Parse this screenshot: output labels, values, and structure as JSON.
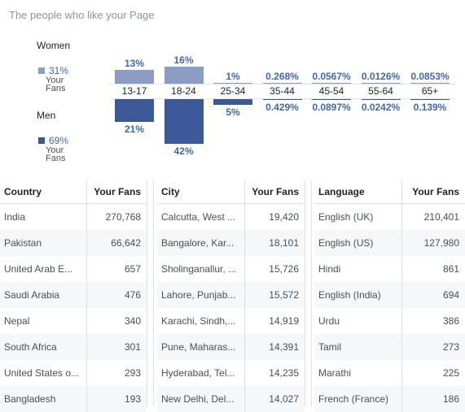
{
  "title": "The people who like your Page",
  "colors": {
    "women": "#8b9dc3",
    "men": "#3b5998",
    "label_blue": "#4267b2"
  },
  "legend": {
    "women": {
      "label": "Women",
      "pct": "31%",
      "sub": "Your Fans"
    },
    "men": {
      "label": "Men",
      "pct": "69%",
      "sub": "Your Fans"
    }
  },
  "chart_data": {
    "type": "bar",
    "categories": [
      "13-17",
      "18-24",
      "25-34",
      "35-44",
      "45-54",
      "55-64",
      "65+"
    ],
    "series": [
      {
        "name": "Women",
        "values": [
          13,
          16,
          1,
          0.268,
          0.0567,
          0.0126,
          0.0853
        ],
        "labels": [
          "13%",
          "16%",
          "1%",
          "0.268%",
          "0.0567%",
          "0.0126%",
          "0.0853%"
        ]
      },
      {
        "name": "Men",
        "values": [
          21,
          42,
          5,
          0.429,
          0.0897,
          0.0242,
          0.139
        ],
        "labels": [
          "21%",
          "42%",
          "5%",
          "0.429%",
          "0.0897%",
          "0.0242%",
          "0.139%"
        ]
      }
    ]
  },
  "tables": [
    {
      "headers": [
        "Country",
        "Your Fans"
      ],
      "rows": [
        [
          "India",
          "270,768"
        ],
        [
          "Pakistan",
          "66,642"
        ],
        [
          "United Arab E...",
          "657"
        ],
        [
          "Saudi Arabia",
          "476"
        ],
        [
          "Nepal",
          "340"
        ],
        [
          "South Africa",
          "301"
        ],
        [
          "United States o...",
          "293"
        ],
        [
          "Bangladesh",
          "193"
        ]
      ]
    },
    {
      "headers": [
        "City",
        "Your Fans"
      ],
      "rows": [
        [
          "Calcutta, West ...",
          "19,420"
        ],
        [
          "Bangalore, Kar...",
          "18,101"
        ],
        [
          "Sholinganallur, ...",
          "15,726"
        ],
        [
          "Lahore, Punjab...",
          "15,572"
        ],
        [
          "Karachi, Sindh,...",
          "14,919"
        ],
        [
          "Pune, Maharas...",
          "14,391"
        ],
        [
          "Hyderabad, Tel...",
          "14,235"
        ],
        [
          "New Delhi, Del...",
          "14,027"
        ]
      ]
    },
    {
      "headers": [
        "Language",
        "Your Fans"
      ],
      "rows": [
        [
          "English (UK)",
          "210,401"
        ],
        [
          "English (US)",
          "127,980"
        ],
        [
          "Hindi",
          "861"
        ],
        [
          "English (India)",
          "694"
        ],
        [
          "Urdu",
          "386"
        ],
        [
          "Tamil",
          "273"
        ],
        [
          "Marathi",
          "225"
        ],
        [
          "French (France)",
          "186"
        ]
      ]
    }
  ]
}
